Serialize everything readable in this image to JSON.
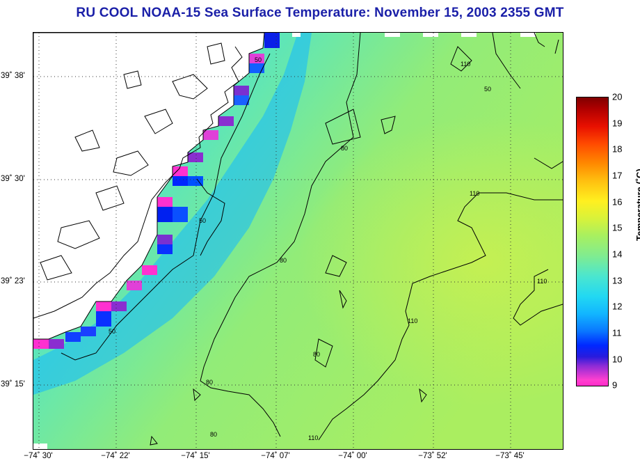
{
  "title": "RU COOL  NOAA-15  Sea Surface Temperature:  November 15, 2003 2355 GMT",
  "map": {
    "lat_labels": [
      "39˚ 38'",
      "39˚ 30'",
      "39˚ 23'",
      "39˚ 15'"
    ],
    "lon_labels": [
      "−74˚ 30'",
      "−74˚ 22'",
      "−74˚ 15'",
      "−74˚ 07'",
      "−74˚ 00'",
      "−73˚ 52'",
      "−73˚ 45'"
    ],
    "contour_labels": [
      "50",
      "50",
      "50",
      "50",
      "80",
      "80",
      "80",
      "80",
      "110",
      "110",
      "110",
      "110",
      "110",
      "80"
    ],
    "land_color": "#ffffff",
    "grid": "dotted"
  },
  "colorbar": {
    "label": "Temperature (˚C)",
    "ticks": [
      "20",
      "19",
      "18",
      "17",
      "16",
      "15",
      "14",
      "13",
      "12",
      "11",
      "10",
      "9"
    ],
    "min": 9,
    "max": 20
  }
}
